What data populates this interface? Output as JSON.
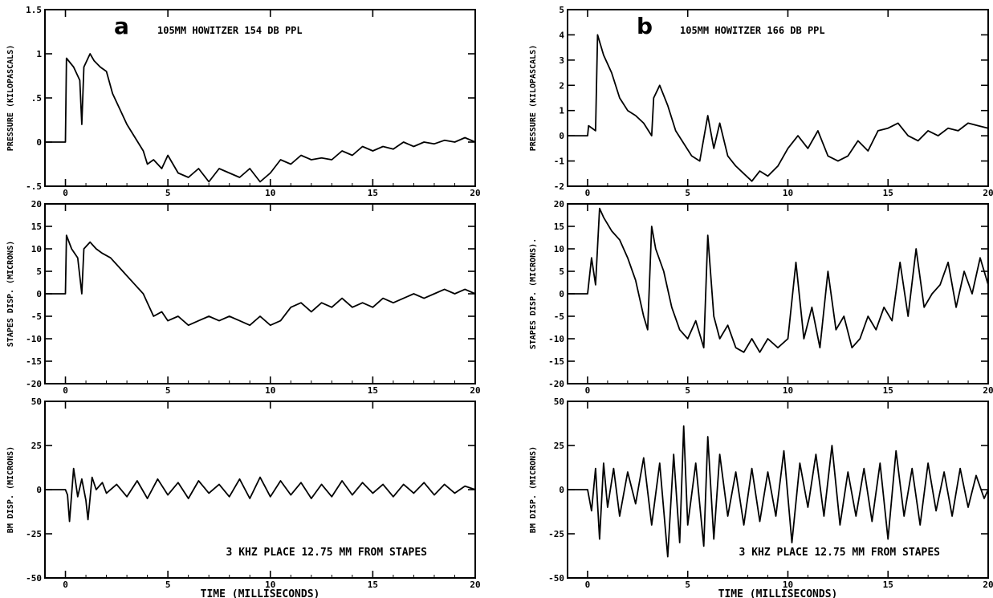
{
  "chart_data": [
    {
      "id": "a1",
      "type": "line",
      "panel_letter": "a",
      "title": "105MM HOWITZER   154 DB PPL",
      "xlabel": "",
      "ylabel": "PRESSURE (KILOPASCALS)",
      "xlim": [
        -1,
        20
      ],
      "ylim": [
        -0.5,
        1.5
      ],
      "xticks": [
        "0",
        "5",
        "10",
        "15",
        "20"
      ],
      "yticks": [
        "-.5",
        "0",
        ".5",
        "1",
        "1.5"
      ],
      "yticks_values": [
        -0.5,
        0,
        0.5,
        1,
        1.5
      ],
      "series": [
        {
          "x": [
            -1,
            0,
            0.05,
            0.4,
            0.7,
            0.8,
            0.9,
            1.2,
            1.4,
            1.7,
            2.0,
            2.3,
            2.6,
            3.0,
            3.4,
            3.8,
            4.0,
            4.3,
            4.7,
            5.0,
            5.5,
            6.0,
            6.5,
            7.0,
            7.5,
            8.0,
            8.5,
            9.0,
            9.5,
            10.0,
            10.5,
            11.0,
            11.5,
            12.0,
            12.5,
            13.0,
            13.5,
            14.0,
            14.5,
            15.0,
            15.5,
            16.0,
            16.5,
            17.0,
            17.5,
            18.0,
            18.5,
            19.0,
            19.5,
            20.0
          ],
          "y": [
            0,
            0,
            0.95,
            0.85,
            0.7,
            0.2,
            0.85,
            1.0,
            0.92,
            0.85,
            0.8,
            0.55,
            0.4,
            0.2,
            0.05,
            -0.1,
            -0.25,
            -0.2,
            -0.3,
            -0.15,
            -0.35,
            -0.4,
            -0.3,
            -0.45,
            -0.3,
            -0.35,
            -0.4,
            -0.3,
            -0.45,
            -0.35,
            -0.2,
            -0.25,
            -0.15,
            -0.2,
            -0.18,
            -0.2,
            -0.1,
            -0.15,
            -0.05,
            -0.1,
            -0.05,
            -0.08,
            0.0,
            -0.05,
            0.0,
            -0.02,
            0.02,
            0.0,
            0.05,
            0.0
          ]
        }
      ]
    },
    {
      "id": "a2",
      "type": "line",
      "panel_letter": "",
      "title": "",
      "xlabel": "",
      "ylabel": "STAPES DISP. (MICRONS)",
      "xlim": [
        -1,
        20
      ],
      "ylim": [
        -20,
        20
      ],
      "xticks": [
        "0",
        "5",
        "10",
        "15",
        "20"
      ],
      "yticks": [
        "-20",
        "-15",
        "-10",
        "-5",
        "0",
        "5",
        "10",
        "15",
        "20"
      ],
      "yticks_values": [
        -20,
        -15,
        -10,
        -5,
        0,
        5,
        10,
        15,
        20
      ],
      "series": [
        {
          "x": [
            -1,
            0,
            0.05,
            0.3,
            0.6,
            0.8,
            0.9,
            1.2,
            1.5,
            1.8,
            2.2,
            2.6,
            3.0,
            3.4,
            3.8,
            4.0,
            4.3,
            4.7,
            5.0,
            5.5,
            6.0,
            6.5,
            7.0,
            7.5,
            8.0,
            8.5,
            9.0,
            9.5,
            10.0,
            10.5,
            11.0,
            11.5,
            12.0,
            12.5,
            13.0,
            13.5,
            14.0,
            14.5,
            15.0,
            15.5,
            16.0,
            16.5,
            17.0,
            17.5,
            18.0,
            18.5,
            19.0,
            19.5,
            20.0
          ],
          "y": [
            0,
            0,
            13,
            10,
            8,
            0,
            10,
            11.5,
            10,
            9,
            8,
            6,
            4,
            2,
            0,
            -2,
            -5,
            -4,
            -6,
            -5,
            -7,
            -6,
            -5,
            -6,
            -5,
            -6,
            -7,
            -5,
            -7,
            -6,
            -3,
            -2,
            -4,
            -2,
            -3,
            -1,
            -3,
            -2,
            -3,
            -1,
            -2,
            -1,
            0,
            -1,
            0,
            1,
            0,
            1,
            0
          ]
        }
      ]
    },
    {
      "id": "a3",
      "type": "line",
      "panel_letter": "",
      "title": "",
      "annotation": "3 KHZ PLACE   12.75 MM FROM STAPES",
      "xlabel": "TIME  (MILLISECONDS)",
      "ylabel": "BM DISP. (MICRONS)",
      "xlim": [
        -1,
        20
      ],
      "ylim": [
        -50,
        50
      ],
      "xticks": [
        "0",
        "5",
        "10",
        "15",
        "20"
      ],
      "yticks": [
        "-50",
        "-25",
        "0",
        "25",
        "50"
      ],
      "yticks_values": [
        -50,
        -25,
        0,
        25,
        50
      ],
      "series": [
        {
          "x": [
            -1,
            0,
            0.1,
            0.2,
            0.4,
            0.6,
            0.8,
            1.0,
            1.1,
            1.3,
            1.5,
            1.8,
            2.0,
            2.5,
            3.0,
            3.5,
            4.0,
            4.5,
            5.0,
            5.5,
            6.0,
            6.5,
            7.0,
            7.5,
            8.0,
            8.5,
            9.0,
            9.5,
            10.0,
            10.5,
            11.0,
            11.5,
            12.0,
            12.5,
            13.0,
            13.5,
            14.0,
            14.5,
            15.0,
            15.5,
            16.0,
            16.5,
            17.0,
            17.5,
            18.0,
            18.5,
            19.0,
            19.5,
            20.0
          ],
          "y": [
            0,
            0,
            -3,
            -18,
            12,
            -4,
            6,
            -6,
            -17,
            7,
            0,
            4,
            -2,
            3,
            -4,
            5,
            -5,
            6,
            -3,
            4,
            -5,
            5,
            -2,
            3,
            -4,
            6,
            -5,
            7,
            -4,
            5,
            -3,
            4,
            -5,
            3,
            -4,
            5,
            -3,
            4,
            -2,
            3,
            -4,
            3,
            -2,
            4,
            -3,
            3,
            -2,
            2,
            0
          ]
        }
      ]
    },
    {
      "id": "b1",
      "type": "line",
      "panel_letter": "b",
      "title": "105MM HOWITZER   166 DB PPL",
      "xlabel": "",
      "ylabel": "PRESSURE (KILOPASCALS)",
      "xlim": [
        -1,
        20
      ],
      "ylim": [
        -2,
        5
      ],
      "xticks": [
        "0",
        "5",
        "10",
        "15",
        "20"
      ],
      "yticks": [
        "-2",
        "-1",
        "0",
        "1",
        "2",
        "3",
        "4",
        "5"
      ],
      "yticks_values": [
        -2,
        -1,
        0,
        1,
        2,
        3,
        4,
        5
      ],
      "series": [
        {
          "x": [
            -1,
            0,
            0.05,
            0.4,
            0.5,
            0.8,
            1.2,
            1.6,
            2.0,
            2.4,
            2.8,
            3.2,
            3.3,
            3.6,
            4.0,
            4.4,
            4.8,
            5.2,
            5.6,
            6.0,
            6.3,
            6.6,
            7.0,
            7.4,
            7.8,
            8.2,
            8.6,
            9.0,
            9.5,
            10.0,
            10.5,
            11.0,
            11.5,
            12.0,
            12.5,
            13.0,
            13.5,
            14.0,
            14.5,
            15.0,
            15.5,
            16.0,
            16.5,
            17.0,
            17.5,
            18.0,
            18.5,
            19.0,
            19.5,
            20.0
          ],
          "y": [
            0,
            0,
            0.4,
            0.2,
            4.0,
            3.2,
            2.5,
            1.5,
            1.0,
            0.8,
            0.5,
            0.0,
            1.5,
            2.0,
            1.2,
            0.2,
            -0.3,
            -0.8,
            -1.0,
            0.8,
            -0.5,
            0.5,
            -0.8,
            -1.2,
            -1.5,
            -1.8,
            -1.4,
            -1.6,
            -1.2,
            -0.5,
            0.0,
            -0.5,
            0.2,
            -0.8,
            -1.0,
            -0.8,
            -0.2,
            -0.6,
            0.2,
            0.3,
            0.5,
            0.0,
            -0.2,
            0.2,
            0.0,
            0.3,
            0.2,
            0.5,
            0.4,
            0.3
          ]
        }
      ]
    },
    {
      "id": "b2",
      "type": "line",
      "panel_letter": "",
      "title": "",
      "xlabel": "",
      "ylabel": "STAPES DISP. (MICRONS).",
      "xlim": [
        -1,
        20
      ],
      "ylim": [
        -20,
        20
      ],
      "xticks": [
        "0",
        "5",
        "10",
        "15",
        "20"
      ],
      "yticks": [
        "-20",
        "-15",
        "-10",
        "-5",
        "0",
        "5",
        "10",
        "15",
        "20"
      ],
      "yticks_values": [
        -20,
        -15,
        -10,
        -5,
        0,
        5,
        10,
        15,
        20
      ],
      "series": [
        {
          "x": [
            -1,
            0,
            0.2,
            0.4,
            0.6,
            0.8,
            1.2,
            1.6,
            2.0,
            2.4,
            2.8,
            3.0,
            3.2,
            3.4,
            3.8,
            4.2,
            4.6,
            5.0,
            5.4,
            5.8,
            6.0,
            6.3,
            6.6,
            7.0,
            7.4,
            7.8,
            8.2,
            8.6,
            9.0,
            9.5,
            10.0,
            10.4,
            10.8,
            11.2,
            11.6,
            12.0,
            12.4,
            12.8,
            13.2,
            13.6,
            14.0,
            14.4,
            14.8,
            15.2,
            15.6,
            16.0,
            16.4,
            16.8,
            17.2,
            17.6,
            18.0,
            18.4,
            18.8,
            19.2,
            19.6,
            20.0
          ],
          "y": [
            0,
            0,
            8,
            2,
            19,
            17,
            14,
            12,
            8,
            3,
            -5,
            -8,
            15,
            10,
            5,
            -3,
            -8,
            -10,
            -6,
            -12,
            13,
            -5,
            -10,
            -7,
            -12,
            -13,
            -10,
            -13,
            -10,
            -12,
            -10,
            7,
            -10,
            -3,
            -12,
            5,
            -8,
            -5,
            -12,
            -10,
            -5,
            -8,
            -3,
            -6,
            7,
            -5,
            10,
            -3,
            0,
            2,
            7,
            -3,
            5,
            0,
            8,
            2
          ]
        }
      ]
    },
    {
      "id": "b3",
      "type": "line",
      "panel_letter": "",
      "title": "",
      "annotation": "3 KHZ PLACE   12.75 MM FROM STAPES",
      "xlabel": "TIME  (MILLISECONDS)",
      "ylabel": "BM DISP. (MICRONS)",
      "xlim": [
        -1,
        20
      ],
      "ylim": [
        -50,
        50
      ],
      "xticks": [
        "0",
        "5",
        "10",
        "15",
        "20"
      ],
      "yticks": [
        "-50",
        "-25",
        "0",
        "25",
        "50"
      ],
      "yticks_values": [
        -50,
        -25,
        0,
        25,
        50
      ],
      "series": [
        {
          "x": [
            -1,
            0,
            0.2,
            0.4,
            0.6,
            0.8,
            1.0,
            1.3,
            1.6,
            2.0,
            2.4,
            2.8,
            3.2,
            3.6,
            4.0,
            4.3,
            4.6,
            4.8,
            5.0,
            5.4,
            5.8,
            6.0,
            6.3,
            6.6,
            7.0,
            7.4,
            7.8,
            8.2,
            8.6,
            9.0,
            9.4,
            9.8,
            10.2,
            10.6,
            11.0,
            11.4,
            11.8,
            12.2,
            12.6,
            13.0,
            13.4,
            13.8,
            14.2,
            14.6,
            15.0,
            15.4,
            15.8,
            16.2,
            16.6,
            17.0,
            17.4,
            17.8,
            18.2,
            18.6,
            19.0,
            19.4,
            19.8,
            20.0
          ],
          "y": [
            0,
            0,
            -12,
            12,
            -28,
            15,
            -10,
            12,
            -15,
            10,
            -8,
            18,
            -20,
            15,
            -38,
            20,
            -30,
            36,
            -20,
            15,
            -32,
            30,
            -28,
            20,
            -15,
            10,
            -20,
            12,
            -18,
            10,
            -15,
            22,
            -30,
            15,
            -10,
            20,
            -15,
            25,
            -20,
            10,
            -15,
            12,
            -18,
            15,
            -28,
            22,
            -15,
            12,
            -20,
            15,
            -12,
            10,
            -15,
            12,
            -10,
            8,
            -5,
            0
          ]
        }
      ]
    }
  ]
}
